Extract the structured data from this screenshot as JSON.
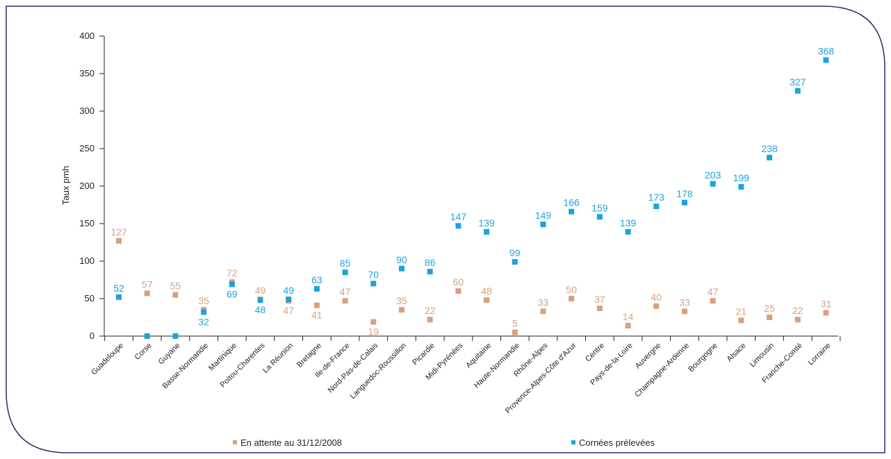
{
  "chart_data": {
    "type": "scatter",
    "ylabel": "Taux pmh",
    "xlabel": "",
    "ylim": [
      0,
      400
    ],
    "yticks": [
      0,
      50,
      100,
      150,
      200,
      250,
      300,
      350,
      400
    ],
    "grid": false,
    "legend_position": "bottom",
    "categories": [
      "Guadeloupe",
      "Corse",
      "Guyane",
      "Basse-Normandie",
      "Martinique",
      "Poitou-Charentes",
      "La Réunion",
      "Bretagne",
      "Ile-de-France",
      "Nord-Pas-de-Calais",
      "Languedoc-Roussillon",
      "Picardie",
      "Midi-Pyrénées",
      "Aquitaine",
      "Haute-Normandie",
      "Rhône-Alpes",
      "Provence-Alpes-Côte d'Azur",
      "Centre",
      "Pays-de-la-Loire",
      "Auvergne",
      "Champagne-Ardenne",
      "Bourgogne",
      "Alsace",
      "Limousin",
      "Franche-Comté",
      "Lorraine"
    ],
    "series": [
      {
        "name": "En attente au 31/12/2008",
        "color": "#D9A07F",
        "values": [
          127,
          57,
          55,
          35,
          72,
          49,
          47,
          41,
          47,
          19,
          35,
          22,
          60,
          48,
          5,
          33,
          50,
          37,
          14,
          40,
          33,
          47,
          21,
          25,
          22,
          31
        ],
        "labels": [
          "127",
          "57",
          "55",
          "35",
          "72",
          "49",
          "47",
          "41",
          "47",
          "19",
          "35",
          "22",
          "60",
          "48",
          "5",
          "33",
          "50",
          "37",
          "14",
          "40",
          "33",
          "47",
          "21",
          "25",
          "22",
          "31"
        ],
        "label_side": [
          "top",
          "top",
          "top",
          "top",
          "top",
          "top",
          "bottom",
          "bottom",
          "top",
          "bottom",
          "top",
          "top",
          "top",
          "top",
          "top",
          "top",
          "top",
          "top",
          "top",
          "top",
          "top",
          "top",
          "top",
          "top",
          "top",
          "top"
        ]
      },
      {
        "name": "Cornées prélevées",
        "color": "#1BA3DC",
        "values": [
          52,
          0,
          0,
          32,
          69,
          48,
          49,
          63,
          85,
          70,
          90,
          86,
          147,
          139,
          99,
          149,
          166,
          159,
          139,
          173,
          178,
          203,
          199,
          238,
          327,
          368
        ],
        "labels": [
          "52",
          "",
          "",
          "32",
          "69",
          "48",
          "49",
          "63",
          "85",
          "70",
          "90",
          "86",
          "147",
          "139",
          "99",
          "149",
          "166",
          "159",
          "139",
          "173",
          "178",
          "203",
          "199",
          "238",
          "327",
          "368"
        ],
        "label_side": [
          "top",
          "none",
          "none",
          "bottom",
          "bottom",
          "bottom",
          "top",
          "top",
          "top",
          "top",
          "top",
          "top",
          "top",
          "top",
          "top",
          "top",
          "top",
          "top",
          "top",
          "top",
          "top",
          "top",
          "top",
          "top",
          "top",
          "top"
        ]
      }
    ]
  }
}
